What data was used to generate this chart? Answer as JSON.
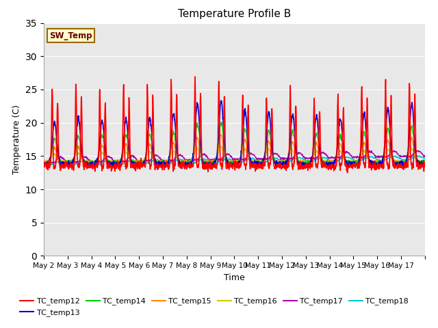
{
  "title": "Temperature Profile B",
  "xlabel": "Time",
  "ylabel": "Temperature (C)",
  "ylim": [
    0,
    35
  ],
  "yticks": [
    0,
    5,
    10,
    15,
    20,
    25,
    30,
    35
  ],
  "xlabels": [
    "May 2",
    "May 3",
    "May 4",
    "May 5",
    "May 6",
    "May 7",
    "May 8",
    "May 9",
    "May 10",
    "May 11",
    "May 12",
    "May 13",
    "May 14",
    "May 15",
    "May 16",
    "May 17"
  ],
  "series_colors": {
    "TC_temp12": "#ff0000",
    "TC_temp13": "#0000cc",
    "TC_temp14": "#00cc00",
    "TC_temp15": "#ff8800",
    "TC_temp16": "#cccc00",
    "TC_temp17": "#aa00aa",
    "TC_temp18": "#00cccc"
  },
  "sw_temp_box_facecolor": "#ffffcc",
  "sw_temp_box_edgecolor": "#996600",
  "fig_facecolor": "#ffffff",
  "plot_bg_color": "#e8e8e8",
  "grid_color": "#ffffff",
  "n_days": 16,
  "pts_per_day": 96
}
